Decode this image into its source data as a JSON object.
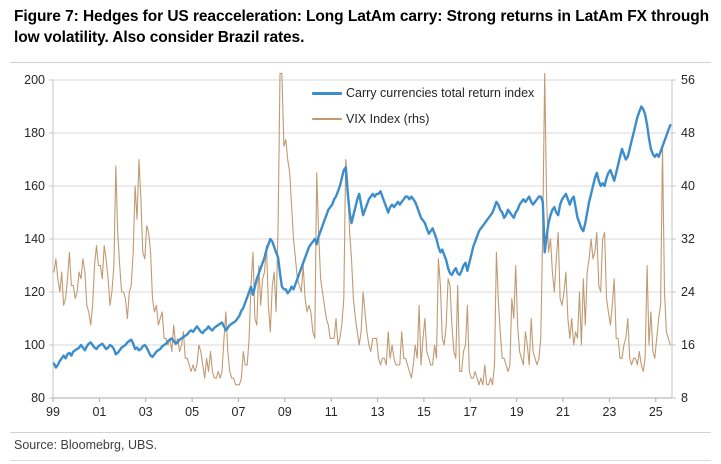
{
  "title": "Figure 7: Hedges for US reacceleration: Long LatAm carry: Strong returns in LatAm FX through low volatility. Also consider Brazil rates.",
  "source": "Source: Bloomebrg, UBS.",
  "colors": {
    "carry_line": "#3c8dcb",
    "vix_line": "#c19a72",
    "gridline": "#d9d9d9",
    "axis_line": "#a9a9a9",
    "spine": "#c6c6c6",
    "tick_text": "#262626"
  },
  "chart_data": {
    "type": "line",
    "title": "",
    "grid": "horizontal",
    "legend_position": "top-center",
    "x_axis": {
      "min": 1999,
      "max": 2025.7,
      "tick_years": [
        1999,
        2001,
        2003,
        2005,
        2007,
        2009,
        2011,
        2013,
        2015,
        2017,
        2019,
        2021,
        2023,
        2025
      ],
      "tick_labels": [
        "99",
        "01",
        "03",
        "05",
        "07",
        "09",
        "11",
        "13",
        "15",
        "17",
        "19",
        "21",
        "23",
        "25"
      ]
    },
    "left_axis": {
      "min": 80,
      "max": 200,
      "ticks": [
        80,
        100,
        120,
        140,
        160,
        180,
        200
      ]
    },
    "right_axis": {
      "min": 8,
      "max": 56,
      "ticks": [
        8,
        16,
        24,
        32,
        40,
        48,
        56
      ]
    },
    "series": [
      {
        "name": "Carry currencies total return index",
        "axis": "left",
        "color": "#3c8dcb",
        "width": 2.4,
        "start_year": 1999,
        "points_per_year": 12,
        "values": [
          93,
          91.5,
          92.5,
          94,
          95,
          96,
          95,
          96.5,
          97,
          96,
          97.5,
          98,
          98.5,
          99,
          100,
          99,
          98,
          99.5,
          100.5,
          101,
          100,
          99,
          98.5,
          99.5,
          100,
          100.5,
          99.5,
          98.5,
          99,
          100,
          99.5,
          98.5,
          96.5,
          97,
          98,
          99,
          99.5,
          100,
          101,
          101.5,
          102,
          100.5,
          98.5,
          99,
          98,
          98.5,
          99.5,
          100,
          99,
          97.5,
          96,
          95.5,
          96.5,
          97.5,
          98,
          98.5,
          99.5,
          100,
          100.5,
          101.5,
          102,
          102.5,
          101.5,
          100.5,
          101,
          102,
          102.5,
          103,
          103.5,
          104,
          105,
          105.5,
          105,
          106,
          107,
          106,
          105,
          104.5,
          105.5,
          106,
          107,
          106,
          105.5,
          106.5,
          107,
          107.5,
          108,
          108.5,
          107,
          105.5,
          106.5,
          107.5,
          108,
          108.5,
          109,
          110,
          111,
          113,
          114,
          116,
          118,
          120,
          122,
          119,
          122,
          125,
          127,
          129,
          131,
          133,
          136,
          138,
          140,
          139,
          137,
          135,
          133,
          127,
          122,
          121,
          121,
          119.5,
          120.5,
          122,
          121,
          123,
          125,
          127,
          129,
          131,
          133,
          135,
          137,
          138,
          139,
          140,
          138,
          141,
          143,
          145,
          147,
          149,
          151,
          152,
          153,
          155,
          156,
          158,
          160,
          163,
          166,
          167,
          158,
          150,
          146,
          149,
          152,
          155,
          157,
          153,
          149,
          151,
          153,
          155,
          156,
          157,
          156,
          157,
          157,
          158,
          156,
          154,
          152,
          150,
          152,
          153,
          152,
          153,
          154,
          153,
          154,
          155,
          156,
          156,
          155,
          156,
          155,
          154,
          152,
          150,
          148,
          147,
          146,
          144,
          142,
          143,
          144,
          142,
          140,
          137,
          135,
          136,
          134,
          132,
          129,
          127,
          126.5,
          128,
          129,
          127,
          126.5,
          128,
          130,
          131,
          128,
          131,
          134,
          137,
          139,
          141,
          143,
          144,
          145,
          146,
          147,
          148,
          149,
          150,
          152,
          154,
          153,
          151,
          150,
          148,
          149,
          151,
          150,
          149,
          148,
          150,
          151,
          153,
          154,
          155,
          154,
          155,
          156,
          154,
          153,
          154,
          155,
          156,
          156,
          154,
          135,
          141,
          146,
          149,
          151,
          152,
          150,
          149,
          153,
          155,
          156,
          157,
          155,
          153,
          155,
          156,
          152,
          148,
          146,
          144,
          143,
          146,
          150,
          154,
          157,
          160,
          163,
          165,
          162,
          160,
          161,
          160,
          163,
          165,
          166,
          164,
          162,
          165,
          168,
          171,
          174,
          172,
          170,
          171,
          174,
          177,
          180,
          183,
          186,
          188,
          190,
          189,
          187,
          183,
          178,
          174,
          172,
          171,
          172,
          171,
          173,
          175,
          177,
          179,
          181,
          183
        ]
      },
      {
        "name": "VIX Index (rhs)",
        "axis": "right",
        "color": "#c19a72",
        "width": 1.1,
        "start_year": 1999,
        "points_per_year": 12,
        "values": [
          27,
          29,
          26,
          24,
          27,
          22,
          23,
          26,
          30,
          25,
          25,
          23,
          24,
          27,
          26,
          29,
          27,
          22,
          21,
          19,
          22,
          28,
          31,
          28,
          28,
          26,
          31,
          29,
          26,
          22,
          24,
          28,
          43,
          33,
          28,
          24,
          24,
          23,
          20,
          24,
          25,
          30,
          40,
          35,
          44,
          38,
          30,
          29,
          34,
          33,
          30,
          23,
          21,
          22,
          19,
          20,
          21,
          17,
          17,
          16,
          17,
          15,
          19,
          16,
          17,
          15,
          16,
          18,
          14,
          14,
          13,
          12,
          13,
          12,
          13,
          16,
          15,
          13,
          11,
          14,
          12,
          15,
          12,
          11,
          11,
          12,
          11,
          12,
          17,
          21,
          15,
          12,
          11,
          11,
          10,
          10,
          10,
          11,
          15,
          13,
          13,
          17,
          25,
          30,
          20,
          19,
          28,
          22,
          26,
          27,
          31,
          22,
          18,
          25,
          27,
          21,
          34,
          57,
          57,
          46,
          47,
          44,
          42,
          37,
          32,
          29,
          26,
          25,
          24,
          28,
          23,
          21,
          22,
          21,
          18,
          17,
          42,
          33,
          26,
          24,
          22,
          20,
          19,
          17,
          17,
          17,
          20,
          16,
          17,
          19,
          23,
          44,
          41,
          33,
          29,
          23,
          20,
          18,
          16,
          18,
          24,
          21,
          18,
          16,
          15,
          17,
          17,
          17,
          14,
          13,
          14,
          14,
          13,
          18,
          14,
          16,
          14,
          13,
          13,
          13,
          18,
          14,
          14,
          13,
          12,
          11,
          13,
          16,
          14,
          22,
          13,
          17,
          20,
          15,
          14,
          13,
          13,
          16,
          14,
          29,
          25,
          17,
          16,
          19,
          26,
          25,
          19,
          15,
          14,
          25,
          12,
          12,
          15,
          16,
          22,
          12,
          11,
          11,
          12,
          11,
          10,
          11,
          10,
          13,
          10,
          10,
          11,
          10,
          13,
          30,
          23,
          18,
          14,
          14,
          13,
          12,
          13,
          23,
          20,
          28,
          19,
          15,
          14,
          13,
          18,
          16,
          13,
          20,
          15,
          14,
          13,
          14,
          17,
          34,
          57,
          38,
          30,
          32,
          27,
          24,
          29,
          33,
          23,
          22,
          24,
          27,
          20,
          17,
          20,
          16,
          18,
          17,
          24,
          16,
          26,
          19,
          27,
          29,
          32,
          29,
          30,
          33,
          25,
          24,
          32,
          33,
          23,
          21,
          19,
          22,
          26,
          17,
          17,
          14,
          14,
          16,
          17,
          20,
          14,
          13,
          14,
          14,
          13,
          15,
          13,
          12,
          14,
          28,
          16,
          21,
          15,
          14,
          17,
          20,
          22,
          46,
          24,
          18,
          17,
          16
        ]
      }
    ]
  }
}
